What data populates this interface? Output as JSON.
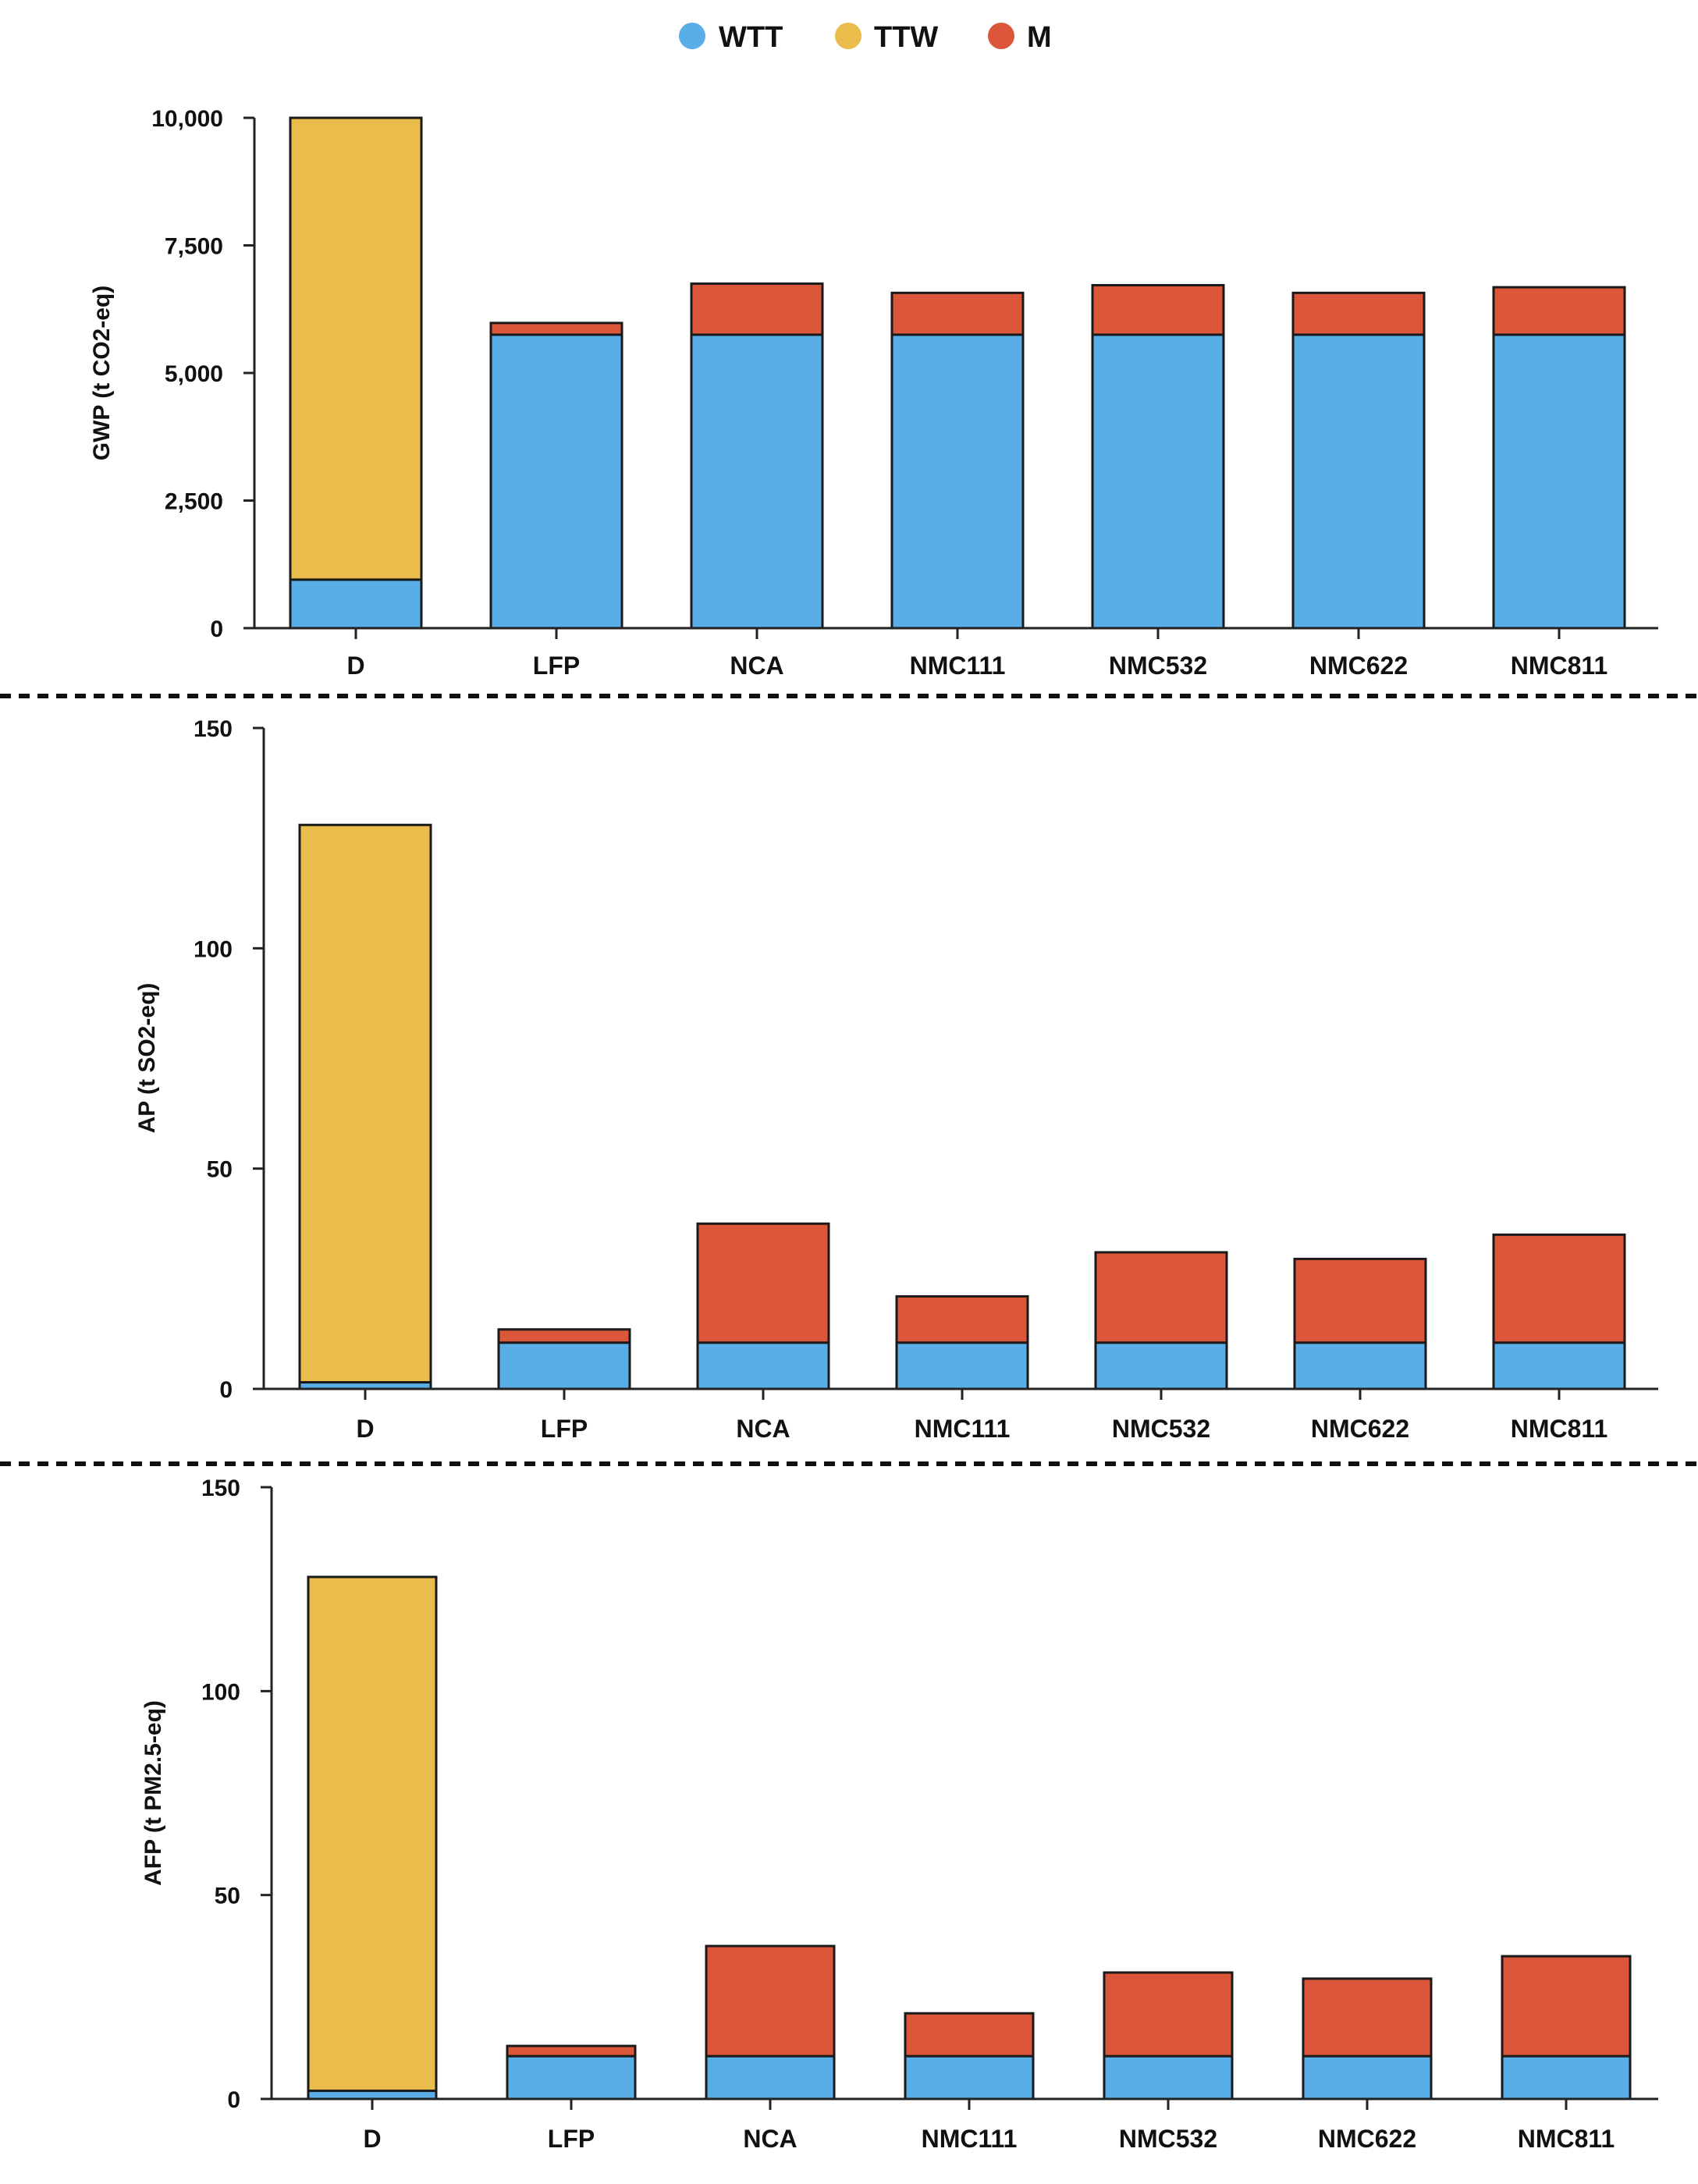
{
  "legend": [
    {
      "key": "WTT",
      "label": "WTT",
      "color": "#5aaee8"
    },
    {
      "key": "TTW",
      "label": "TTW",
      "color": "#e9bc4b"
    },
    {
      "key": "M",
      "label": "M",
      "color": "#dc563a"
    }
  ],
  "chart_data": [
    {
      "type": "bar",
      "stacked": true,
      "ylabel": "GWP (t CO2-eq)",
      "ylim": [
        0,
        10000
      ],
      "yticks": [
        0,
        2500,
        5000,
        7500,
        10000
      ],
      "ytick_labels": [
        "0",
        "2,500",
        "5,000",
        "7,500",
        "10,000"
      ],
      "categories": [
        "D",
        "LFP",
        "NCA",
        "NMC111",
        "NMC532",
        "NMC622",
        "NMC811"
      ],
      "series": [
        {
          "name": "WTT",
          "values": [
            950,
            5750,
            5750,
            5750,
            5750,
            5750,
            5750
          ]
        },
        {
          "name": "TTW",
          "values": [
            9050,
            0,
            0,
            0,
            0,
            0,
            0
          ]
        },
        {
          "name": "M",
          "values": [
            0,
            230,
            1000,
            820,
            970,
            820,
            930
          ]
        }
      ]
    },
    {
      "type": "bar",
      "stacked": true,
      "ylabel": "AP (t SO2-eq)",
      "ylim": [
        0,
        150
      ],
      "yticks": [
        0,
        50,
        100,
        150
      ],
      "ytick_labels": [
        "0",
        "50",
        "100",
        "150"
      ],
      "categories": [
        "D",
        "LFP",
        "NCA",
        "NMC111",
        "NMC532",
        "NMC622",
        "NMC811"
      ],
      "series": [
        {
          "name": "WTT",
          "values": [
            1.5,
            10.5,
            10.5,
            10.5,
            10.5,
            10.5,
            10.5
          ]
        },
        {
          "name": "TTW",
          "values": [
            126.5,
            0,
            0,
            0,
            0,
            0,
            0
          ]
        },
        {
          "name": "M",
          "values": [
            0,
            3,
            27,
            10.5,
            20.5,
            19,
            24.5
          ]
        }
      ]
    },
    {
      "type": "bar",
      "stacked": true,
      "ylabel": "AFP (t PM2.5-eq)",
      "ylim": [
        0,
        150
      ],
      "yticks": [
        0,
        50,
        100,
        150
      ],
      "ytick_labels": [
        "0",
        "50",
        "100",
        "150"
      ],
      "categories": [
        "D",
        "LFP",
        "NCA",
        "NMC111",
        "NMC532",
        "NMC622",
        "NMC811"
      ],
      "series": [
        {
          "name": "WTT",
          "values": [
            2,
            10.5,
            10.5,
            10.5,
            10.5,
            10.5,
            10.5
          ]
        },
        {
          "name": "TTW",
          "values": [
            126,
            0,
            0,
            0,
            0,
            0,
            0
          ]
        },
        {
          "name": "M",
          "values": [
            0,
            2.5,
            27,
            10.5,
            20.5,
            19,
            24.5
          ]
        }
      ]
    }
  ]
}
